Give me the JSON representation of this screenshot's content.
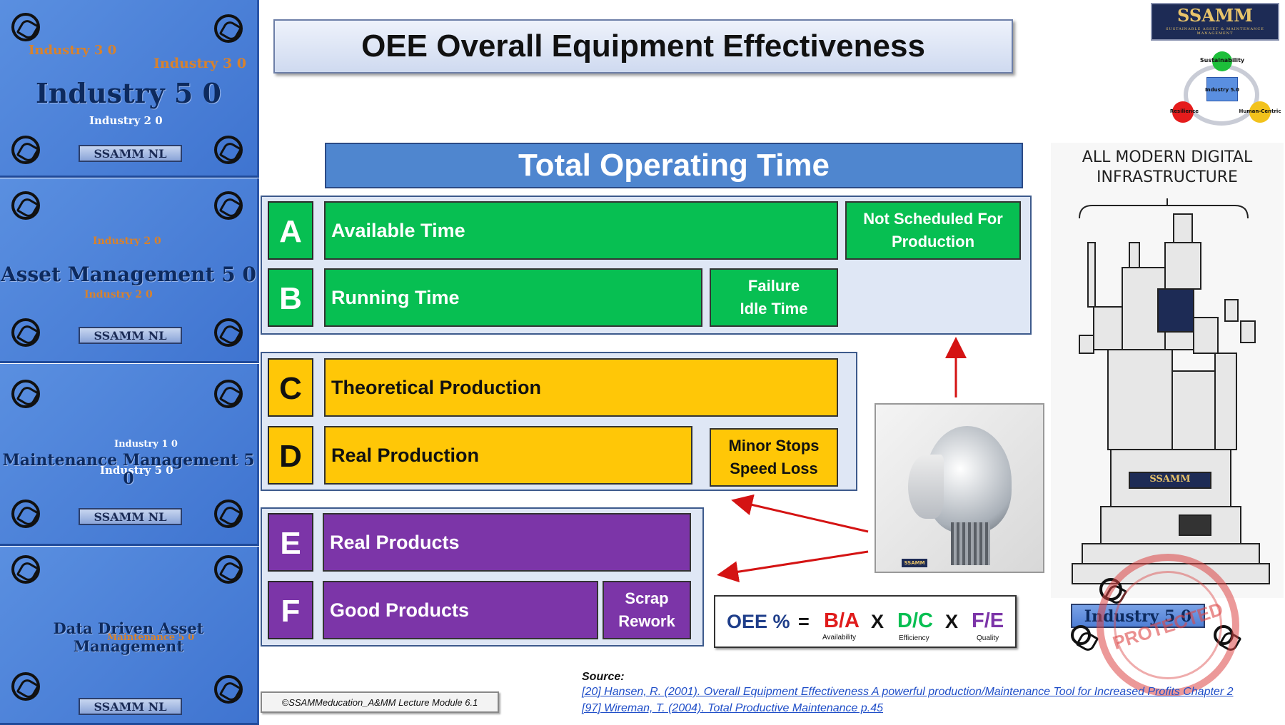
{
  "sidebar": {
    "tiles": [
      {
        "headline": "Industry 5 0",
        "badge": "SSAMM NL"
      },
      {
        "headline": "Asset Management 5 0",
        "badge": "SSAMM NL"
      },
      {
        "headline": "Maintenance Management 5 0",
        "badge": "SSAMM NL"
      },
      {
        "headline": "Data Driven Asset Management",
        "badge": "SSAMM NL"
      }
    ]
  },
  "title": "OEE Overall Equipment Effectiveness",
  "logo": {
    "text": "SSAMM",
    "sub": "SUSTAINABLE ASSET & MAINTENANCE MANAGEMENT"
  },
  "cycle_diagram": {
    "top": "Sustainability",
    "left": "Resilience",
    "right": "Human-Centric",
    "center": "Industry 5.0"
  },
  "total_header": "Total Operating Time",
  "rows": {
    "a": {
      "letter": "A",
      "label": "Available Time",
      "side": "Not Scheduled For\nProduction"
    },
    "b": {
      "letter": "B",
      "label": "Running Time",
      "side": "Failure\nIdle Time"
    },
    "c": {
      "letter": "C",
      "label": "Theoretical Production"
    },
    "d": {
      "letter": "D",
      "label": "Real Production",
      "side": "Minor Stops\nSpeed Loss"
    },
    "e": {
      "letter": "E",
      "label": "Real Products"
    },
    "f": {
      "letter": "F",
      "label": "Good Products",
      "side": "Scrap\nRework"
    }
  },
  "formula": {
    "lhs": "OEE %",
    "eq": "=",
    "x": "X",
    "ba": "B/A",
    "ba_label": "Availability",
    "dc": "D/C",
    "dc_label": "Efficiency",
    "fe": "F/E",
    "fe_label": "Quality"
  },
  "cartoon": {
    "caption_line1": "ALL MODERN DIGITAL",
    "caption_line2": "INFRASTRUCTURE",
    "plate": "SSAMM",
    "base_badge": "Industry 5 0"
  },
  "stamp": {
    "text": "PROTECTED"
  },
  "robot_badge": "SSAMM",
  "copyright": "©SSAMMeducation_A&MM Lecture Module 6.1",
  "source": {
    "label": "Source:",
    "ref1": "[20] Hansen, R. (2001). Overall Equipment Effectiveness A powerful production/Maintenance Tool for Increased Profits Chapter 2",
    "ref2": "[97] Wireman, T. (2004). Total Productive Maintenance p.45"
  },
  "colors": {
    "green": "#07bf52",
    "yellow": "#ffc707",
    "purple": "#7c35a8",
    "header_blue": "#4f86cf",
    "red": "#e01b1b"
  }
}
